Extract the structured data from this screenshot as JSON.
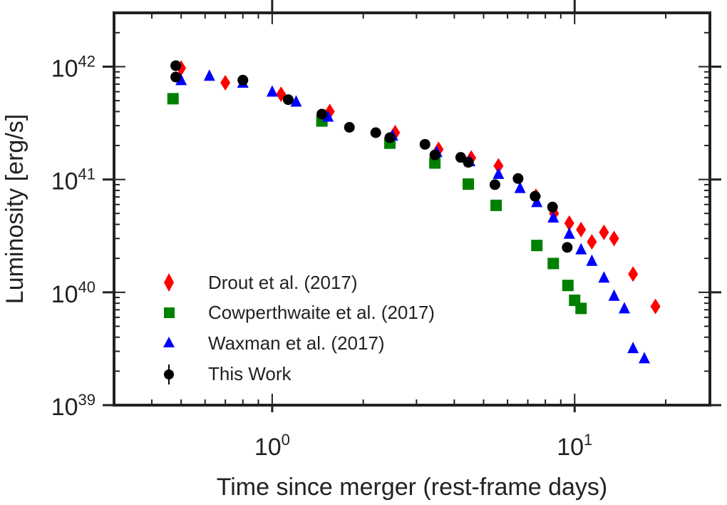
{
  "chart_data": {
    "type": "scatter",
    "xlabel": "Time since merger (rest-frame days)",
    "ylabel": "Luminosity [erg/s]",
    "xscale": "log",
    "yscale": "log",
    "xlim": [
      0.3,
      28
    ],
    "ylim": [
      1e+39,
      3e+42
    ],
    "xticks": [
      {
        "value": 1,
        "base": "10",
        "exp": "0"
      },
      {
        "value": 10,
        "base": "10",
        "exp": "1"
      }
    ],
    "yticks": [
      {
        "value": 1e+39,
        "base": "10",
        "exp": "39"
      },
      {
        "value": 1e+40,
        "base": "10",
        "exp": "40"
      },
      {
        "value": 1e+41,
        "base": "10",
        "exp": "41"
      },
      {
        "value": 1e+42,
        "base": "10",
        "exp": "42"
      }
    ],
    "legend_position": "lower-left",
    "series": [
      {
        "name": "Drout et al. (2017)",
        "marker": "diamond",
        "color": "#ff0000",
        "points": [
          [
            0.5,
            9.7e+41
          ],
          [
            0.7,
            7.2e+41
          ],
          [
            1.07,
            5.7e+41
          ],
          [
            1.55,
            4e+41
          ],
          [
            2.55,
            2.6e+41
          ],
          [
            3.55,
            1.85e+41
          ],
          [
            4.55,
            1.55e+41
          ],
          [
            5.6,
            1.32e+41
          ],
          [
            7.45,
            7.1e+40
          ],
          [
            8.55,
            5e+40
          ],
          [
            9.6,
            4.1e+40
          ],
          [
            10.5,
            3.6e+40
          ],
          [
            11.4,
            2.8e+40
          ],
          [
            12.5,
            3.4e+40
          ],
          [
            13.5,
            3e+40
          ],
          [
            15.6,
            1.45e+40
          ],
          [
            18.5,
            7.5e+39
          ]
        ]
      },
      {
        "name": "Cowperthwaite et al. (2017)",
        "marker": "square",
        "color": "#008000",
        "points": [
          [
            0.47,
            5.2e+41
          ],
          [
            1.46,
            3.3e+41
          ],
          [
            2.45,
            2.1e+41
          ],
          [
            3.45,
            1.4e+41
          ],
          [
            4.45,
            9.1e+40
          ],
          [
            5.5,
            5.9e+40
          ],
          [
            7.5,
            2.6e+40
          ],
          [
            8.5,
            1.8e+40
          ],
          [
            9.5,
            1.15e+40
          ],
          [
            10.0,
            8.5e+39
          ],
          [
            10.5,
            7.2e+39
          ]
        ]
      },
      {
        "name": "Waxman et al. (2017)",
        "marker": "triangle",
        "color": "#0000ff",
        "points": [
          [
            0.5,
            7.6e+41
          ],
          [
            0.62,
            8.3e+41
          ],
          [
            0.8,
            7.2e+41
          ],
          [
            1.0,
            6e+41
          ],
          [
            1.2,
            4.9e+41
          ],
          [
            1.53,
            3.6e+41
          ],
          [
            2.5,
            2.45e+41
          ],
          [
            3.5,
            1.75e+41
          ],
          [
            4.5,
            1.45e+41
          ],
          [
            5.6,
            1.12e+41
          ],
          [
            6.6,
            8.4e+40
          ],
          [
            7.5,
            6.3e+40
          ],
          [
            8.5,
            4.6e+40
          ],
          [
            9.6,
            3.3e+40
          ],
          [
            10.5,
            2.4e+40
          ],
          [
            11.4,
            1.9e+40
          ],
          [
            12.5,
            1.35e+40
          ],
          [
            13.5,
            9.3e+39
          ],
          [
            14.6,
            7.2e+39
          ],
          [
            15.6,
            3.2e+39
          ],
          [
            17.0,
            2.6e+39
          ]
        ]
      },
      {
        "name": "This Work",
        "marker": "circle",
        "color": "#000000",
        "points": [
          [
            0.48,
            1.02e+42
          ],
          [
            0.48,
            8.1e+41
          ],
          [
            0.8,
            7.6e+41
          ],
          [
            1.13,
            5.1e+41
          ],
          [
            1.46,
            3.8e+41
          ],
          [
            1.8,
            2.9e+41
          ],
          [
            2.2,
            2.6e+41
          ],
          [
            2.45,
            2.35e+41
          ],
          [
            3.2,
            2.05e+41
          ],
          [
            3.45,
            1.65e+41
          ],
          [
            4.2,
            1.57e+41
          ],
          [
            4.45,
            1.42e+41
          ],
          [
            5.45,
            9e+40
          ],
          [
            6.5,
            1.02e+41
          ],
          [
            7.4,
            7.1e+40
          ],
          [
            8.45,
            5.7e+40
          ],
          [
            9.45,
            2.5e+40
          ]
        ]
      }
    ]
  }
}
